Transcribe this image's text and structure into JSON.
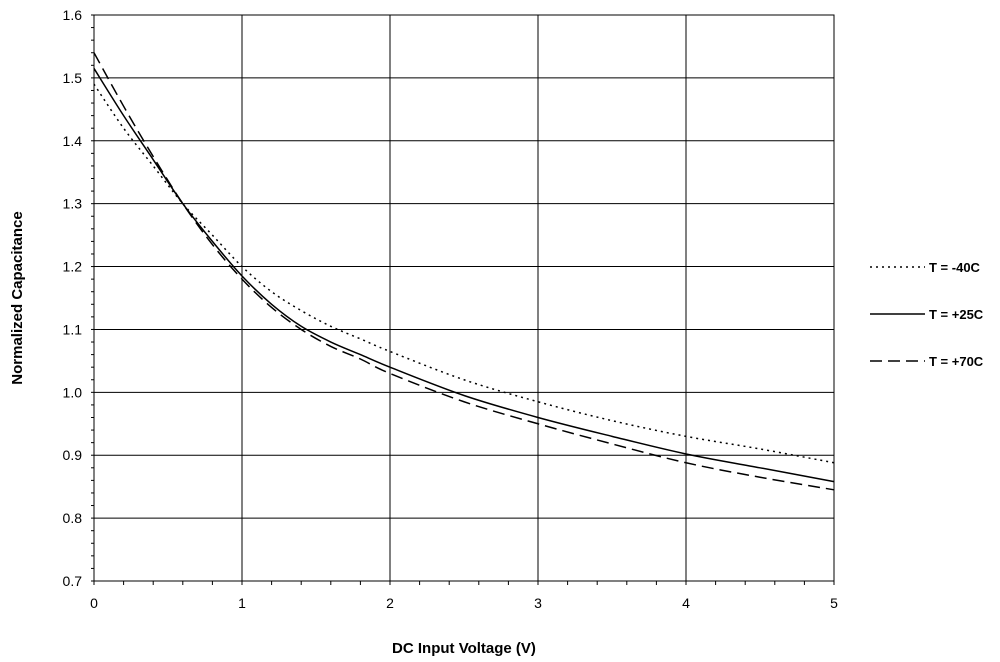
{
  "chart_data": {
    "type": "line",
    "title": "",
    "xlabel": "DC Input Voltage (V)",
    "ylabel": "Normalized Capacitance",
    "xlim": [
      0,
      5
    ],
    "ylim": [
      0.7,
      1.6
    ],
    "xticks": [
      0,
      1,
      2,
      3,
      4,
      5
    ],
    "yticks": [
      0.7,
      0.8,
      0.9,
      1.0,
      1.1,
      1.2,
      1.3,
      1.4,
      1.5,
      1.6
    ],
    "xtick_labels": [
      "0",
      "1",
      "2",
      "3",
      "4",
      "5"
    ],
    "ytick_labels": [
      "0.7",
      "0.8",
      "0.9",
      "1.0",
      "1.1",
      "1.2",
      "1.3",
      "1.4",
      "1.5",
      "1.6"
    ],
    "grid": true,
    "legend_position": "right",
    "series": [
      {
        "name": "T = -40C",
        "style": "dotted",
        "color": "#000000",
        "x": [
          0,
          0.2,
          0.4,
          0.6,
          0.8,
          1.0,
          1.2,
          1.4,
          1.6,
          1.8,
          2.0,
          2.5,
          3.0,
          3.5,
          4.0,
          4.5,
          5.0
        ],
        "y": [
          1.49,
          1.42,
          1.36,
          1.3,
          1.25,
          1.2,
          1.16,
          1.13,
          1.105,
          1.085,
          1.065,
          1.02,
          0.985,
          0.955,
          0.93,
          0.91,
          0.888
        ]
      },
      {
        "name": "T = +25C",
        "style": "solid",
        "color": "#000000",
        "x": [
          0,
          0.2,
          0.4,
          0.6,
          0.8,
          1.0,
          1.2,
          1.4,
          1.6,
          1.8,
          2.0,
          2.5,
          3.0,
          3.5,
          4.0,
          4.5,
          5.0
        ],
        "y": [
          1.515,
          1.44,
          1.37,
          1.3,
          1.24,
          1.185,
          1.14,
          1.105,
          1.08,
          1.06,
          1.04,
          0.995,
          0.96,
          0.93,
          0.902,
          0.88,
          0.858
        ]
      },
      {
        "name": "T = +70C",
        "style": "dashed",
        "color": "#000000",
        "x": [
          0,
          0.2,
          0.4,
          0.6,
          0.8,
          1.0,
          1.2,
          1.4,
          1.6,
          1.8,
          2.0,
          2.5,
          3.0,
          3.5,
          4.0,
          4.5,
          5.0
        ],
        "y": [
          1.54,
          1.455,
          1.375,
          1.3,
          1.235,
          1.18,
          1.135,
          1.1,
          1.073,
          1.053,
          1.03,
          0.985,
          0.95,
          0.918,
          0.888,
          0.865,
          0.845
        ]
      }
    ]
  }
}
